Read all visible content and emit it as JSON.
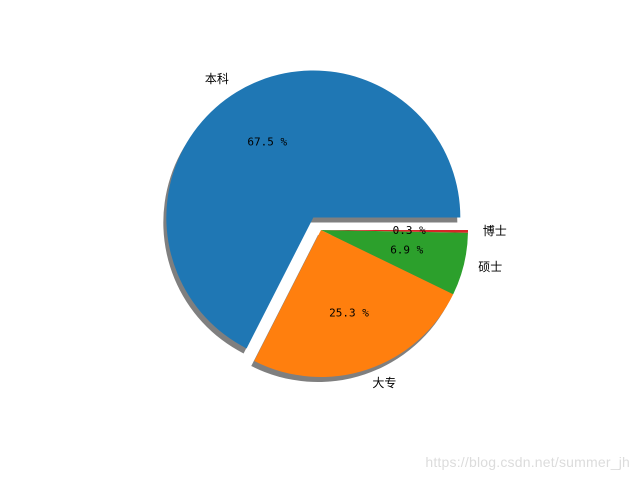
{
  "chart_data": {
    "type": "pie",
    "categories": [
      "本科",
      "大专",
      "硕士",
      "博士"
    ],
    "values": [
      67.5,
      25.3,
      6.9,
      0.3
    ],
    "value_labels": [
      "67.5 %",
      "25.3 %",
      "6.9 %",
      "0.3 %"
    ],
    "colors": [
      "#1f77b4",
      "#ff7f0e",
      "#2ca02c",
      "#d62728"
    ],
    "exploded": [
      true,
      false,
      false,
      false
    ],
    "shadow": true,
    "start_angle_deg": 0,
    "direction": "counterclockwise",
    "title": ""
  },
  "watermark": "https://blog.csdn.net/summer_jh"
}
